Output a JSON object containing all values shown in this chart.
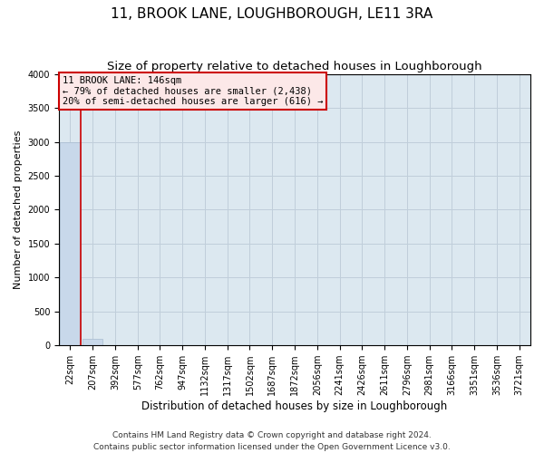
{
  "title": "11, BROOK LANE, LOUGHBOROUGH, LE11 3RA",
  "subtitle": "Size of property relative to detached houses in Loughborough",
  "xlabel": "Distribution of detached houses by size in Loughborough",
  "ylabel": "Number of detached properties",
  "footnote1": "Contains HM Land Registry data © Crown copyright and database right 2024.",
  "footnote2": "Contains public sector information licensed under the Open Government Licence v3.0.",
  "bins": [
    "22sqm",
    "207sqm",
    "392sqm",
    "577sqm",
    "762sqm",
    "947sqm",
    "1132sqm",
    "1317sqm",
    "1502sqm",
    "1687sqm",
    "1872sqm",
    "2056sqm",
    "2241sqm",
    "2426sqm",
    "2611sqm",
    "2796sqm",
    "2981sqm",
    "3166sqm",
    "3351sqm",
    "3536sqm",
    "3721sqm"
  ],
  "values": [
    3000,
    100,
    0,
    0,
    0,
    0,
    0,
    0,
    0,
    0,
    0,
    0,
    0,
    0,
    0,
    0,
    0,
    0,
    0,
    0,
    0
  ],
  "bar_color": "#c8d8ea",
  "bar_edge_color": "#a8bcd0",
  "grid_color": "#c0ceda",
  "background_color": "#dce8f0",
  "annotation_line1": "11 BROOK LANE: 146sqm",
  "annotation_line2": "← 79% of detached houses are smaller (2,438)",
  "annotation_line3": "20% of semi-detached houses are larger (616) →",
  "annotation_box_facecolor": "#fce8e8",
  "annotation_box_edgecolor": "#cc0000",
  "property_line_color": "#cc0000",
  "ylim": [
    0,
    4000
  ],
  "yticks": [
    0,
    500,
    1000,
    1500,
    2000,
    2500,
    3000,
    3500,
    4000
  ],
  "title_fontsize": 11,
  "subtitle_fontsize": 9.5,
  "xlabel_fontsize": 8.5,
  "ylabel_fontsize": 8,
  "tick_fontsize": 7,
  "footnote_fontsize": 6.5
}
